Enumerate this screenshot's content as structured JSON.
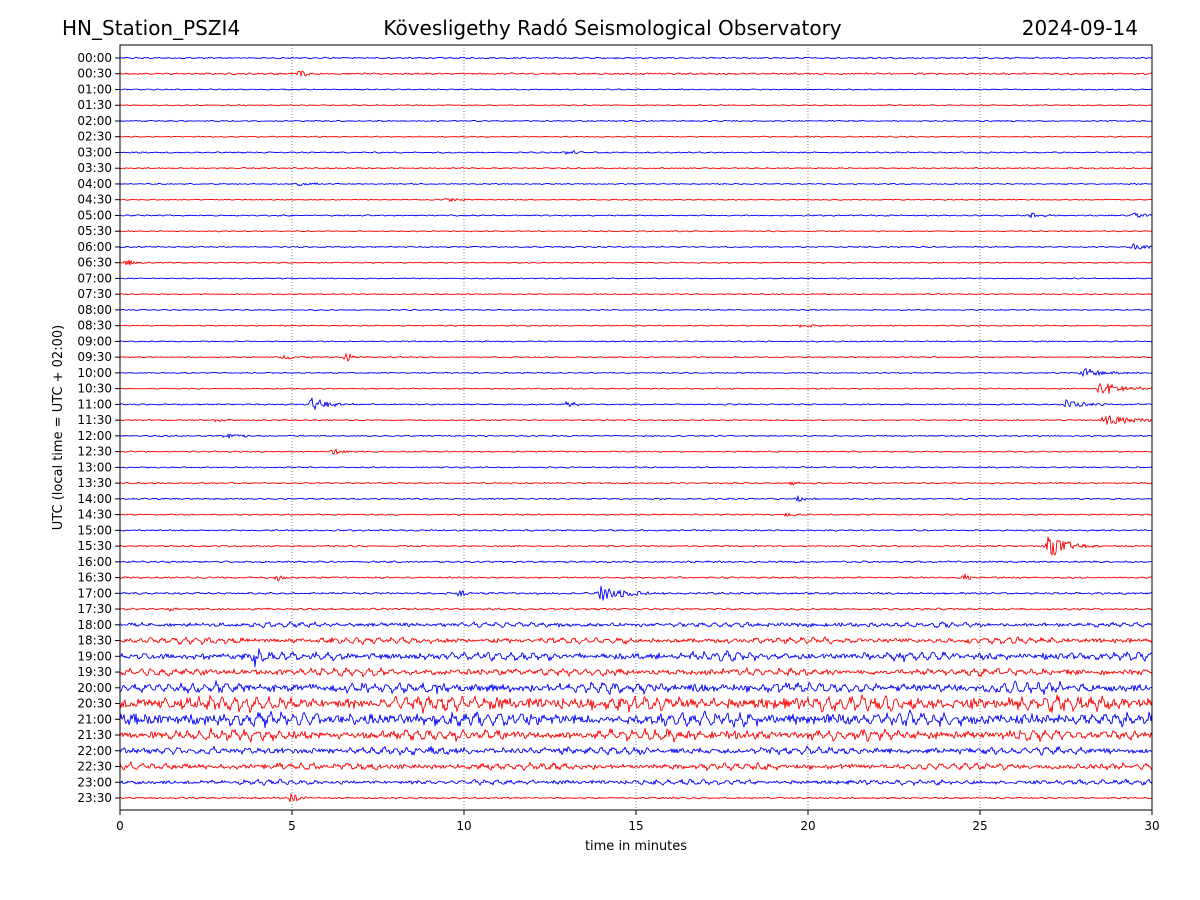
{
  "header": {
    "station": "HN_Station_PSZI4",
    "observatory": "Kövesligethy Radó Seismological Observatory",
    "date": "2024-09-14"
  },
  "chart_data": {
    "type": "line",
    "title": "Kövesligethy Radó Seismological Observatory",
    "subtitle_left": "HN_Station_PSZI4",
    "subtitle_right": "2024-09-14",
    "xlabel": "time in minutes",
    "ylabel": "UTC (local time = UTC + 02:00)",
    "xlim": [
      0,
      30
    ],
    "x_ticks": [
      0,
      5,
      10,
      15,
      20,
      25,
      30
    ],
    "x_tick_labels": [
      "0",
      "5",
      "10",
      "15",
      "20",
      "25",
      "30"
    ],
    "grid": "vertical dotted lines at each x tick",
    "series_colors": [
      "#0000ff",
      "#ff0000"
    ],
    "trace_labels": [
      "00:00",
      "00:30",
      "01:00",
      "01:30",
      "02:00",
      "02:30",
      "03:00",
      "03:30",
      "04:00",
      "04:30",
      "05:00",
      "05:30",
      "06:00",
      "06:30",
      "07:00",
      "07:30",
      "08:00",
      "08:30",
      "09:00",
      "09:30",
      "10:00",
      "10:30",
      "11:00",
      "11:30",
      "12:00",
      "12:30",
      "13:00",
      "13:30",
      "14:00",
      "14:30",
      "15:00",
      "15:30",
      "16:00",
      "16:30",
      "17:00",
      "17:30",
      "18:00",
      "18:30",
      "19:00",
      "19:30",
      "20:00",
      "20:30",
      "21:00",
      "21:30",
      "22:00",
      "22:30",
      "23:00",
      "23:30"
    ],
    "noise_level": [
      0.8,
      0.9,
      0.6,
      0.6,
      0.7,
      0.6,
      0.7,
      0.7,
      0.6,
      0.6,
      0.7,
      0.6,
      0.7,
      0.6,
      0.6,
      0.6,
      0.6,
      0.6,
      0.6,
      0.6,
      0.6,
      0.6,
      0.7,
      0.6,
      0.7,
      0.7,
      0.7,
      0.7,
      0.7,
      0.7,
      0.8,
      0.8,
      0.9,
      0.9,
      1.0,
      1.0,
      1.6,
      2.0,
      2.6,
      2.4,
      3.4,
      4.6,
      4.4,
      3.4,
      2.4,
      2.2,
      1.6,
      0.9
    ],
    "events": [
      {
        "trace": "00:30",
        "minute": 5.2,
        "amplitude": 5,
        "duration": 0.4
      },
      {
        "trace": "03:00",
        "minute": 13.0,
        "amplitude": 2,
        "duration": 1.2
      },
      {
        "trace": "04:00",
        "minute": 5.2,
        "amplitude": 2,
        "duration": 1.0
      },
      {
        "trace": "04:30",
        "minute": 9.5,
        "amplitude": 2,
        "duration": 1.5
      },
      {
        "trace": "05:00",
        "minute": 26.5,
        "amplitude": 4,
        "duration": 0.7
      },
      {
        "trace": "05:00",
        "minute": 29.5,
        "amplitude": 4,
        "duration": 0.7
      },
      {
        "trace": "06:00",
        "minute": 29.5,
        "amplitude": 4,
        "duration": 1.0
      },
      {
        "trace": "06:30",
        "minute": 0.2,
        "amplitude": 3,
        "duration": 0.6
      },
      {
        "trace": "08:30",
        "minute": 19.8,
        "amplitude": 2,
        "duration": 1.2
      },
      {
        "trace": "09:30",
        "minute": 4.8,
        "amplitude": 3,
        "duration": 1.0
      },
      {
        "trace": "09:30",
        "minute": 6.6,
        "amplitude": 5,
        "duration": 0.6
      },
      {
        "trace": "10:00",
        "minute": 28.0,
        "amplitude": 5,
        "duration": 1.6
      },
      {
        "trace": "10:30",
        "minute": 28.5,
        "amplitude": 7,
        "duration": 2.0
      },
      {
        "trace": "11:00",
        "minute": 5.6,
        "amplitude": 7,
        "duration": 1.2
      },
      {
        "trace": "11:00",
        "minute": 13.0,
        "amplitude": 4,
        "duration": 0.5
      },
      {
        "trace": "11:00",
        "minute": 27.5,
        "amplitude": 5,
        "duration": 1.4
      },
      {
        "trace": "11:30",
        "minute": 2.8,
        "amplitude": 3,
        "duration": 0.8
      },
      {
        "trace": "11:30",
        "minute": 28.6,
        "amplitude": 7,
        "duration": 2.0
      },
      {
        "trace": "12:00",
        "minute": 3.1,
        "amplitude": 3,
        "duration": 1.0
      },
      {
        "trace": "12:30",
        "minute": 6.2,
        "amplitude": 3,
        "duration": 0.8
      },
      {
        "trace": "13:30",
        "minute": 19.5,
        "amplitude": 2,
        "duration": 1.0
      },
      {
        "trace": "14:00",
        "minute": 19.7,
        "amplitude": 4,
        "duration": 0.6
      },
      {
        "trace": "14:30",
        "minute": 19.4,
        "amplitude": 3,
        "duration": 0.6
      },
      {
        "trace": "15:30",
        "minute": 27.0,
        "amplitude": 11,
        "duration": 1.5
      },
      {
        "trace": "16:30",
        "minute": 4.6,
        "amplitude": 5,
        "duration": 0.3
      },
      {
        "trace": "16:30",
        "minute": 24.6,
        "amplitude": 6,
        "duration": 0.2
      },
      {
        "trace": "17:00",
        "minute": 14.0,
        "amplitude": 9,
        "duration": 1.8
      },
      {
        "trace": "17:00",
        "minute": 9.9,
        "amplitude": 5,
        "duration": 0.3
      },
      {
        "trace": "17:30",
        "minute": 1.5,
        "amplitude": 3,
        "duration": 0.4
      },
      {
        "trace": "19:00",
        "minute": 3.9,
        "amplitude": 9,
        "duration": 1.0
      },
      {
        "trace": "20:00",
        "minute": 9.0,
        "amplitude": 5,
        "duration": 1.5
      },
      {
        "trace": "23:30",
        "minute": 5.0,
        "amplitude": 6,
        "duration": 0.6
      }
    ]
  }
}
